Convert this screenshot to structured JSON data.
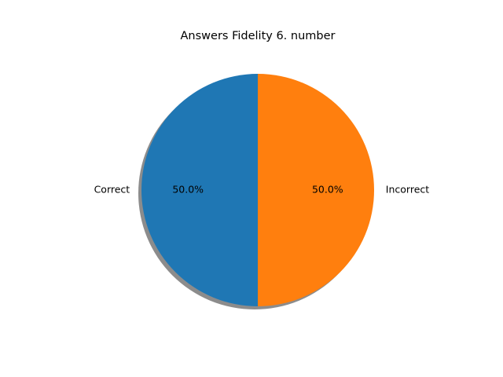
{
  "chart_data": {
    "type": "pie",
    "title": "Answers Fidelity 6. number",
    "labels": [
      "Correct",
      "Incorrect"
    ],
    "values": [
      50,
      50
    ],
    "percent_labels": [
      "50.0%",
      "50.0%"
    ],
    "colors": [
      "#1f77b4",
      "#ff7f0e"
    ],
    "start_angle_deg": 90,
    "direction": "counterclockwise",
    "shadow": true,
    "legend": "none"
  }
}
